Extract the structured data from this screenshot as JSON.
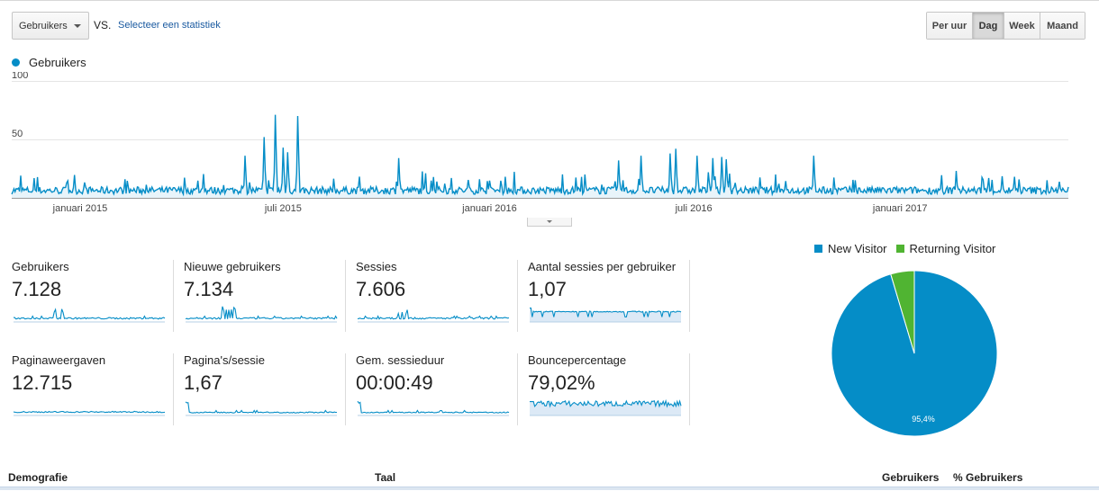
{
  "controls": {
    "metric_select": "Gebruikers",
    "vs_label": "VS.",
    "compare_link": "Selecteer een statistiek",
    "periods": [
      {
        "label": "Per uur",
        "active": false
      },
      {
        "label": "Dag",
        "active": true
      },
      {
        "label": "Week",
        "active": false
      },
      {
        "label": "Maand",
        "active": false
      }
    ]
  },
  "colors": {
    "primary": "#058dc7",
    "secondary": "#50b432",
    "fill": "#e8f4fa",
    "grid": "#e5e5e5"
  },
  "chart_data": {
    "type": "area",
    "legend": [
      "Gebruikers"
    ],
    "y_ticks": [
      "100",
      "50"
    ],
    "ylim": [
      0,
      100
    ],
    "x_ticks": [
      "januari 2015",
      "juli 2015",
      "januari 2016",
      "juli 2016",
      "januari 2017"
    ],
    "x_range": [
      "2014-11-01",
      "2017-05-31"
    ],
    "baseline_daily": 7,
    "spikes": [
      {
        "date": "2015-05-28",
        "value": 36
      },
      {
        "date": "2015-06-14",
        "value": 52
      },
      {
        "date": "2015-06-24",
        "value": 71
      },
      {
        "date": "2015-07-01",
        "value": 43
      },
      {
        "date": "2015-07-05",
        "value": 39
      },
      {
        "date": "2015-07-14",
        "value": 70
      },
      {
        "date": "2015-10-12",
        "value": 34
      },
      {
        "date": "2016-01-15",
        "value": 18
      },
      {
        "date": "2016-04-25",
        "value": 32
      },
      {
        "date": "2016-05-15",
        "value": 36
      },
      {
        "date": "2016-06-10",
        "value": 38
      },
      {
        "date": "2016-06-15",
        "value": 42
      },
      {
        "date": "2016-07-04",
        "value": 36
      },
      {
        "date": "2016-07-18",
        "value": 34
      },
      {
        "date": "2016-07-26",
        "value": 35
      },
      {
        "date": "2016-07-30",
        "value": 33
      },
      {
        "date": "2016-10-16",
        "value": 36
      },
      {
        "date": "2017-02-20",
        "value": 23
      }
    ]
  },
  "metrics": [
    {
      "label": "Gebruikers",
      "value": "7.128",
      "kind": "traffic"
    },
    {
      "label": "Nieuwe gebruikers",
      "value": "7.134",
      "kind": "traffic"
    },
    {
      "label": "Sessies",
      "value": "7.606",
      "kind": "traffic"
    },
    {
      "label": "Aantal sessies per gebruiker",
      "value": "1,07",
      "kind": "ratio"
    },
    {
      "label": "Paginaweergaven",
      "value": "12.715",
      "kind": "pages"
    },
    {
      "label": "Pagina's/sessie",
      "value": "1,67",
      "kind": "flat"
    },
    {
      "label": "Gem. sessieduur",
      "value": "00:00:49",
      "kind": "flat"
    },
    {
      "label": "Bouncepercentage",
      "value": "79,02%",
      "kind": "bounce"
    }
  ],
  "pie": {
    "legend": [
      "New Visitor",
      "Returning Visitor"
    ],
    "values": [
      95.4,
      4.6
    ],
    "slice_label": "95,4%"
  },
  "table": {
    "headers": [
      "Demografie",
      "Taal",
      "Gebruikers",
      "% Gebruikers"
    ]
  }
}
